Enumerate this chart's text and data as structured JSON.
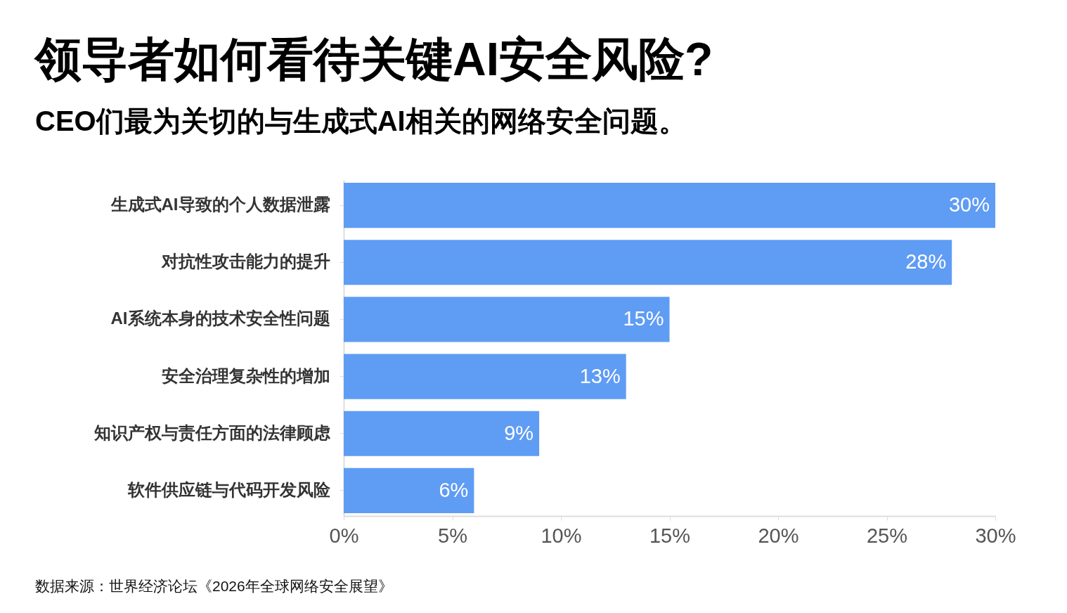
{
  "chart_data": {
    "type": "bar",
    "orientation": "horizontal",
    "title": "领导者如何看待关键AI安全风险?",
    "subtitle": "CEO们最为关切的与生成式AI相关的网络安全问题。",
    "categories": [
      "生成式AI导致的个人数据泄露",
      "对抗性攻击能力的提升",
      "AI系统本身的技术安全性问题",
      "安全治理复杂性的增加",
      "知识产权与责任方面的法律顾虑",
      "软件供应链与代码开发风险"
    ],
    "values": [
      30,
      28,
      15,
      13,
      9,
      6
    ],
    "value_labels": [
      "30%",
      "28%",
      "15%",
      "13%",
      "9%",
      "6%"
    ],
    "color": "#5f9cf4",
    "xlim": [
      0,
      30
    ],
    "xticks": [
      {
        "value": 0,
        "label": "0%"
      },
      {
        "value": 5,
        "label": "5%"
      },
      {
        "value": 10,
        "label": "10%"
      },
      {
        "value": 15,
        "label": "15%"
      },
      {
        "value": 20,
        "label": "20%"
      },
      {
        "value": 25,
        "label": "25%"
      },
      {
        "value": 30,
        "label": "30%"
      }
    ],
    "grid": false,
    "annotations": [
      "数据来源：世界经济论坛《2026年全球网络安全展望》"
    ]
  }
}
